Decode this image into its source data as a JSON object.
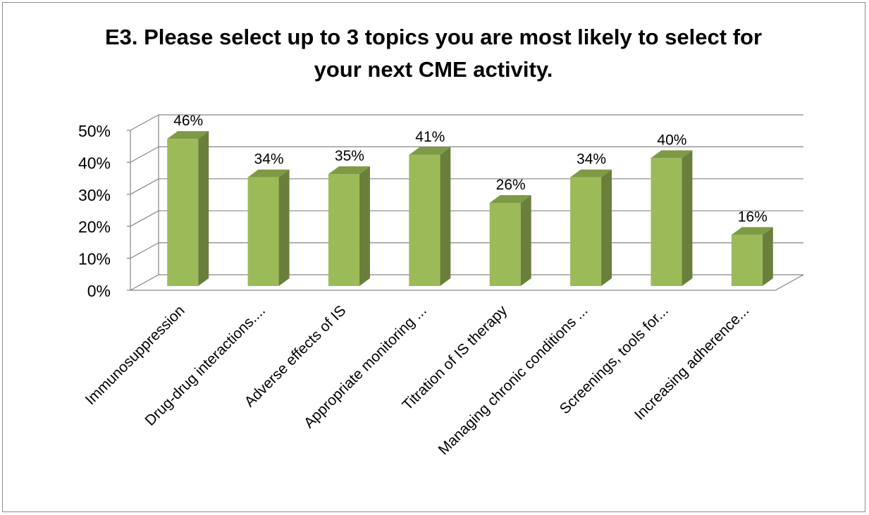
{
  "chart_data": {
    "type": "bar",
    "title_lines": [
      "E3. Please select up to 3 topics you are most likely to select for",
      "your next CME activity."
    ],
    "categories": [
      "Immunosuppression",
      "Drug-drug interactions....",
      "Adverse effects of IS",
      "Appropriate monitoring ...",
      "Titration of IS therapy",
      "Managing chronic conditions ...",
      "Screenings, tools for...",
      "Increasing adherence..."
    ],
    "values": [
      46,
      34,
      35,
      41,
      26,
      34,
      40,
      16
    ],
    "data_labels": [
      "46%",
      "34%",
      "35%",
      "41%",
      "26%",
      "34%",
      "40%",
      "16%"
    ],
    "y_ticks": [
      0,
      10,
      20,
      30,
      40,
      50
    ],
    "y_tick_labels": [
      "0%",
      "10%",
      "20%",
      "30%",
      "40%",
      "50%"
    ],
    "ylim": [
      0,
      50
    ],
    "grid": true,
    "legend": "none",
    "style": "3d-column",
    "colors": {
      "bar_front": "#9bbb59",
      "bar_side": "#6a7f3c",
      "bar_top": "#7f9a45",
      "grid": "#868686",
      "axis": "#868686"
    }
  }
}
